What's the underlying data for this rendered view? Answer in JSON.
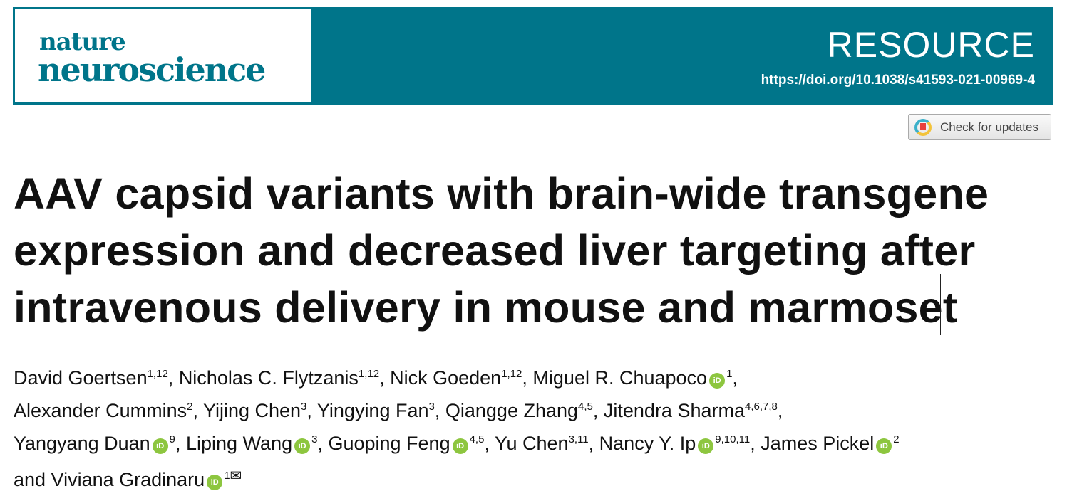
{
  "header": {
    "journal_line1": "nature",
    "journal_line2": "neuroscience",
    "article_type": "RESOURCE",
    "doi": "https://doi.org/10.1038/s41593-021-00969-4",
    "brand_color": "#00758a"
  },
  "check_updates": {
    "label": "Check for updates",
    "icon": "crossmark-icon"
  },
  "title": "AAV capsid variants with brain-wide transgene expression and decreased liver targeting after intravenous delivery in mouse and marmoset",
  "authors_lines": [
    [
      {
        "name": "David Goertsen",
        "sup": "1,12",
        "orcid": false,
        "sep": ", "
      },
      {
        "name": "Nicholas C. Flytzanis",
        "sup": "1,12",
        "orcid": false,
        "sep": ", "
      },
      {
        "name": "Nick Goeden",
        "sup": "1,12",
        "orcid": false,
        "sep": ", "
      },
      {
        "name": "Miguel R. Chuapoco",
        "sup": "1",
        "orcid": true,
        "sep": ","
      }
    ],
    [
      {
        "name": "Alexander Cummins",
        "sup": "2",
        "orcid": false,
        "sep": ", "
      },
      {
        "name": "Yijing Chen",
        "sup": "3",
        "orcid": false,
        "sep": ", "
      },
      {
        "name": "Yingying Fan",
        "sup": "3",
        "orcid": false,
        "sep": ", "
      },
      {
        "name": "Qiangge Zhang",
        "sup": "4,5",
        "orcid": false,
        "sep": ", "
      },
      {
        "name": "Jitendra Sharma",
        "sup": "4,6,7,8",
        "orcid": false,
        "sep": ","
      }
    ],
    [
      {
        "name": "Yangyang Duan",
        "sup": "9",
        "orcid": true,
        "sep": ", "
      },
      {
        "name": "Liping Wang",
        "sup": "3",
        "orcid": true,
        "sep": ", "
      },
      {
        "name": "Guoping Feng",
        "sup": "4,5",
        "orcid": true,
        "sep": ", "
      },
      {
        "name": "Yu Chen",
        "sup": "3,11",
        "orcid": false,
        "sep": ", "
      },
      {
        "name": "Nancy Y. Ip",
        "sup": "9,10,11",
        "orcid": true,
        "sep": ", "
      },
      {
        "name": "James Pickel",
        "sup": "2",
        "orcid": true,
        "sep": ""
      }
    ],
    [
      {
        "name": "and Viviana Gradinaru",
        "sup": "1",
        "orcid": true,
        "sep": "",
        "mail": true
      }
    ]
  ],
  "orcid_label": "iD",
  "orcid_color": "#8dc63f"
}
